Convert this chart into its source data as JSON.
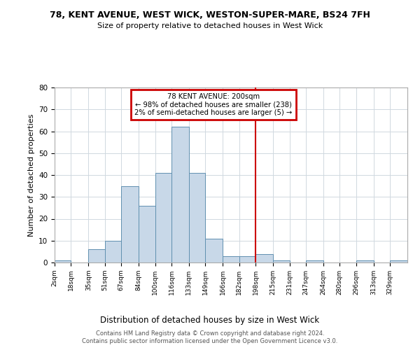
{
  "title1": "78, KENT AVENUE, WEST WICK, WESTON-SUPER-MARE, BS24 7FH",
  "title2": "Size of property relative to detached houses in West Wick",
  "xlabel": "Distribution of detached houses by size in West Wick",
  "ylabel": "Number of detached properties",
  "footer1": "Contains HM Land Registry data © Crown copyright and database right 2024.",
  "footer2": "Contains public sector information licensed under the Open Government Licence v3.0.",
  "bin_edges": [
    2,
    18,
    35,
    51,
    67,
    84,
    100,
    116,
    133,
    149,
    166,
    182,
    198,
    215,
    231,
    247,
    264,
    280,
    296,
    313,
    329,
    346
  ],
  "bar_heights": [
    1,
    0,
    6,
    10,
    35,
    26,
    41,
    62,
    41,
    11,
    3,
    3,
    4,
    1,
    0,
    1,
    0,
    0,
    1,
    0,
    1
  ],
  "bar_color": "#c8d8e8",
  "bar_edge_color": "#6090b0",
  "vline_x": 198,
  "vline_color": "#cc0000",
  "annotation_line1": "78 KENT AVENUE: 200sqm",
  "annotation_line2": "← 98% of detached houses are smaller (238)",
  "annotation_line3": "2% of semi-detached houses are larger (5) →",
  "annotation_box_edge": "#cc0000",
  "ylim": [
    0,
    80
  ],
  "yticks": [
    0,
    10,
    20,
    30,
    40,
    50,
    60,
    70,
    80
  ],
  "tick_labels": [
    "2sqm",
    "18sqm",
    "35sqm",
    "51sqm",
    "67sqm",
    "84sqm",
    "100sqm",
    "116sqm",
    "133sqm",
    "149sqm",
    "166sqm",
    "182sqm",
    "198sqm",
    "215sqm",
    "231sqm",
    "247sqm",
    "264sqm",
    "280sqm",
    "296sqm",
    "313sqm",
    "329sqm"
  ],
  "background_color": "#ffffff",
  "grid_color": "#d0d8e0"
}
